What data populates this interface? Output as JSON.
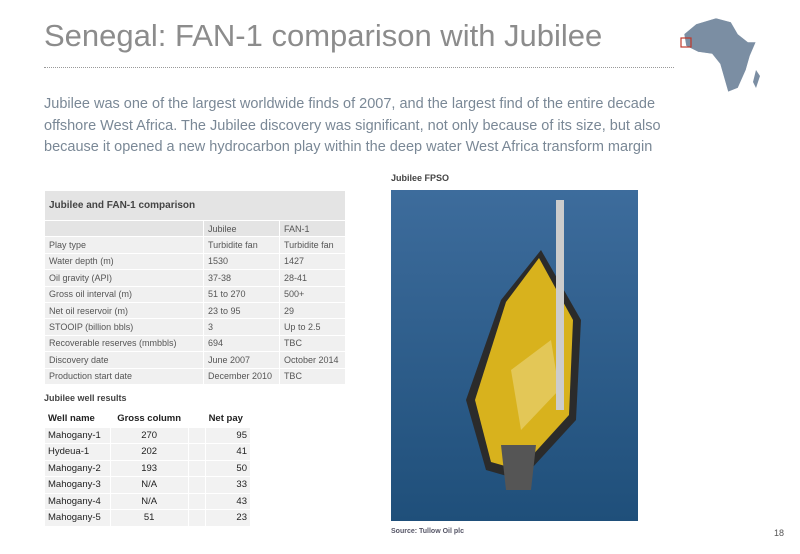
{
  "header": {
    "title": "Senegal: FAN-1 comparison with Jubilee"
  },
  "intro": [
    "Jubilee was one of the largest worldwide finds of 2007, and the largest find of the entire decade",
    "offshore West Africa. The Jubilee discovery was significant, not only because of its size, but also",
    "because it opened a new hydrocarbon play within the deep water West Africa transform margin"
  ],
  "comparison": {
    "title": "Jubilee and FAN-1 comparison",
    "columns": [
      "Jubilee",
      "FAN-1"
    ],
    "rows": [
      [
        "Play type",
        "Turbidite fan",
        "Turbidite fan"
      ],
      [
        "Water depth (m)",
        "1530",
        "1427"
      ],
      [
        "Oil gravity (API)",
        "37-38",
        "28-41"
      ],
      [
        "Gross oil interval (m)",
        "51 to 270",
        "500+"
      ],
      [
        "Net oil reservoir (m)",
        "23 to 95",
        "29"
      ],
      [
        "STOOIP (billion bbls)",
        "3",
        "Up to 2.5"
      ],
      [
        "Recoverable reserves (mmbbls)",
        "694",
        "TBC"
      ],
      [
        "Discovery date",
        "June 2007",
        "October 2014"
      ],
      [
        "Production start date",
        "December 2010",
        "TBC"
      ]
    ]
  },
  "wells": {
    "title": "Jubilee well results",
    "columns": [
      "Well name",
      "Gross column",
      "Net pay"
    ],
    "rows": [
      [
        "Mahogany-1",
        "270",
        "95"
      ],
      [
        "Hydeua-1",
        "202",
        "41"
      ],
      [
        "Mahogany-2",
        "193",
        "50"
      ],
      [
        "Mahogany-3",
        "N/A",
        "33"
      ],
      [
        "Mahogany-4",
        "N/A",
        "43"
      ],
      [
        "Mahogany-5",
        "51",
        "23"
      ]
    ]
  },
  "image": {
    "caption": "Jubilee FPSO",
    "source": "Source:  Tullow Oil plc"
  },
  "page_number": "18"
}
